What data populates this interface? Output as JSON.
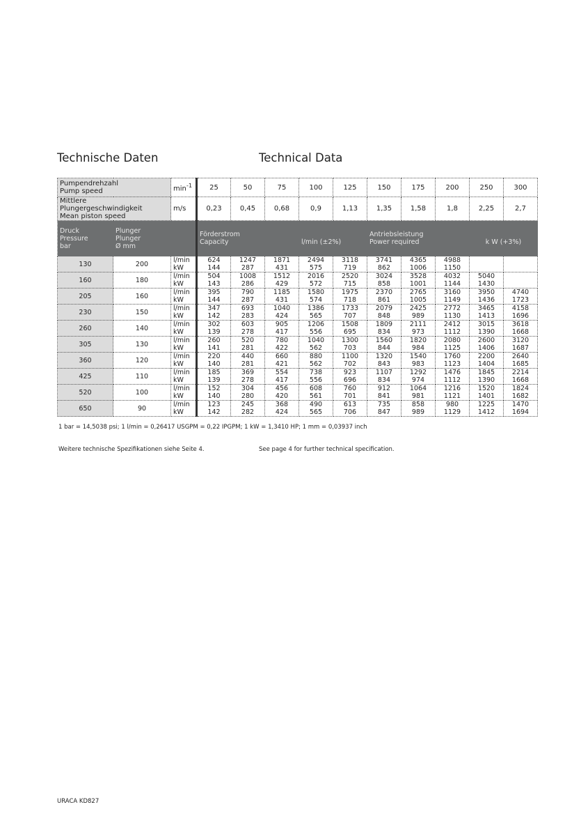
{
  "heading_de": "Technische Daten",
  "heading_en": "Technical Data",
  "table": {
    "speed_label": [
      "Pumpendrehzahl",
      "Pump speed"
    ],
    "speed_unit": "min",
    "speed_unit_sup": "-1",
    "speeds": [
      "25",
      "50",
      "75",
      "100",
      "125",
      "150",
      "175",
      "200",
      "250",
      "300"
    ],
    "piston_label": [
      "Mittlere Plungergeschwindigkeit",
      "Mean piston speed"
    ],
    "piston_unit": "m/s",
    "piston_speeds": [
      "0,23",
      "0,45",
      "0,68",
      "0,9",
      "1,13",
      "1,35",
      "1,58",
      "1,8",
      "2,25",
      "2,7"
    ],
    "header": {
      "pressure": [
        "Druck",
        "Pressure",
        "bar"
      ],
      "plunger": [
        "Plunger",
        "Plunger",
        "Ø mm"
      ],
      "capacity": [
        "Förderstrom",
        "Capacity"
      ],
      "capacity_unit": "l/min (±2%)",
      "power": [
        "Antriebsleistung",
        "Power required"
      ],
      "power_unit": "k W (+3%)"
    },
    "unit_flow": "l/min",
    "unit_power": "kW",
    "rows": [
      {
        "pressure": "130",
        "plunger": "200",
        "flow": [
          "624",
          "1247",
          "1871",
          "2494",
          "3118",
          "3741",
          "4365",
          "4988",
          "",
          ""
        ],
        "power": [
          "144",
          "287",
          "431",
          "575",
          "719",
          "862",
          "1006",
          "1150",
          "",
          ""
        ]
      },
      {
        "pressure": "160",
        "plunger": "180",
        "flow": [
          "504",
          "1008",
          "1512",
          "2016",
          "2520",
          "3024",
          "3528",
          "4032",
          "5040",
          ""
        ],
        "power": [
          "143",
          "286",
          "429",
          "572",
          "715",
          "858",
          "1001",
          "1144",
          "1430",
          ""
        ]
      },
      {
        "pressure": "205",
        "plunger": "160",
        "flow": [
          "395",
          "790",
          "1185",
          "1580",
          "1975",
          "2370",
          "2765",
          "3160",
          "3950",
          "4740"
        ],
        "power": [
          "144",
          "287",
          "431",
          "574",
          "718",
          "861",
          "1005",
          "1149",
          "1436",
          "1723"
        ]
      },
      {
        "pressure": "230",
        "plunger": "150",
        "flow": [
          "347",
          "693",
          "1040",
          "1386",
          "1733",
          "2079",
          "2425",
          "2772",
          "3465",
          "4158"
        ],
        "power": [
          "142",
          "283",
          "424",
          "565",
          "707",
          "848",
          "989",
          "1130",
          "1413",
          "1696"
        ]
      },
      {
        "pressure": "260",
        "plunger": "140",
        "flow": [
          "302",
          "603",
          "905",
          "1206",
          "1508",
          "1809",
          "2111",
          "2412",
          "3015",
          "3618"
        ],
        "power": [
          "139",
          "278",
          "417",
          "556",
          "695",
          "834",
          "973",
          "1112",
          "1390",
          "1668"
        ]
      },
      {
        "pressure": "305",
        "plunger": "130",
        "flow": [
          "260",
          "520",
          "780",
          "1040",
          "1300",
          "1560",
          "1820",
          "2080",
          "2600",
          "3120"
        ],
        "power": [
          "141",
          "281",
          "422",
          "562",
          "703",
          "844",
          "984",
          "1125",
          "1406",
          "1687"
        ]
      },
      {
        "pressure": "360",
        "plunger": "120",
        "flow": [
          "220",
          "440",
          "660",
          "880",
          "1100",
          "1320",
          "1540",
          "1760",
          "2200",
          "2640"
        ],
        "power": [
          "140",
          "281",
          "421",
          "562",
          "702",
          "843",
          "983",
          "1123",
          "1404",
          "1685"
        ]
      },
      {
        "pressure": "425",
        "plunger": "110",
        "flow": [
          "185",
          "369",
          "554",
          "738",
          "923",
          "1107",
          "1292",
          "1476",
          "1845",
          "2214"
        ],
        "power": [
          "139",
          "278",
          "417",
          "556",
          "696",
          "834",
          "974",
          "1112",
          "1390",
          "1668"
        ]
      },
      {
        "pressure": "520",
        "plunger": "100",
        "flow": [
          "152",
          "304",
          "456",
          "608",
          "760",
          "912",
          "1064",
          "1216",
          "1520",
          "1824"
        ],
        "power": [
          "140",
          "280",
          "420",
          "561",
          "701",
          "841",
          "981",
          "1121",
          "1401",
          "1682"
        ]
      },
      {
        "pressure": "650",
        "plunger": "90",
        "flow": [
          "123",
          "245",
          "368",
          "490",
          "613",
          "735",
          "858",
          "980",
          "1225",
          "1470"
        ],
        "power": [
          "142",
          "282",
          "424",
          "565",
          "706",
          "847",
          "989",
          "1129",
          "1412",
          "1694"
        ]
      }
    ]
  },
  "conversion_note": "1 bar = 14,5038 psi; 1 l/min = 0,26417 USGPM = 0,22 IPGPM; 1 kW = 1,3410 HP; 1 mm = 0,03937 inch",
  "further_de": "Weitere technische Spezifikationen siehe Seite 4.",
  "further_en": "See page 4 for further technical specification.",
  "footer": "URACA KD827"
}
